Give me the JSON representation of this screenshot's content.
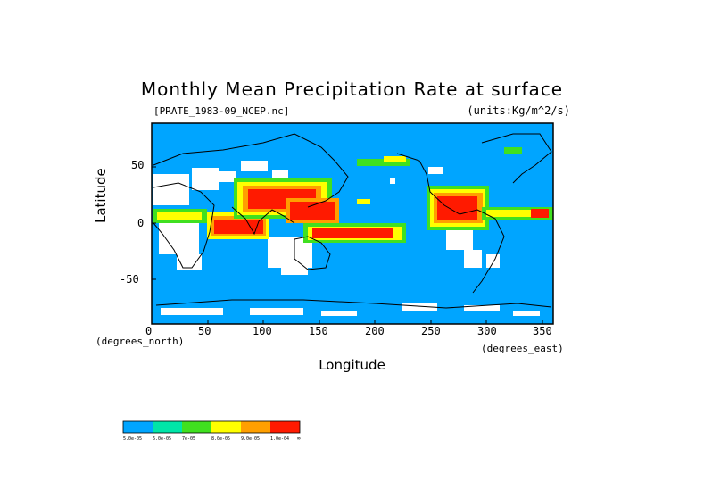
{
  "title": "Monthly Mean Precipitation Rate at surface",
  "source_label": "[PRATE_1983-09_NCEP.nc]",
  "units_label": "(units:Kg/m^2/s)",
  "xlabel": "Longitude",
  "ylabel": "Latitude",
  "x_units": "(degrees_east)",
  "y_units": "(degrees_north)",
  "x_ticks": [
    "0",
    "50",
    "100",
    "150",
    "200",
    "250",
    "300",
    "350"
  ],
  "y_ticks": [
    "50",
    "0",
    "-50"
  ],
  "colorbar": {
    "colors": [
      "#00a5ff",
      "#00e5a8",
      "#40e020",
      "#ffff00",
      "#ff9f00",
      "#ff1a00"
    ],
    "labels": [
      "5.0e-05",
      "6.0e-05",
      "7e-05",
      "8.0e-05",
      "9.0e-05",
      "1.0e-04",
      "∞"
    ]
  },
  "chart_data": {
    "type": "heatmap",
    "title": "Monthly Mean Precipitation Rate at surface",
    "xlabel": "Longitude",
    "ylabel": "Latitude",
    "xlim": [
      0,
      360
    ],
    "ylim": [
      -90,
      90
    ]
  }
}
